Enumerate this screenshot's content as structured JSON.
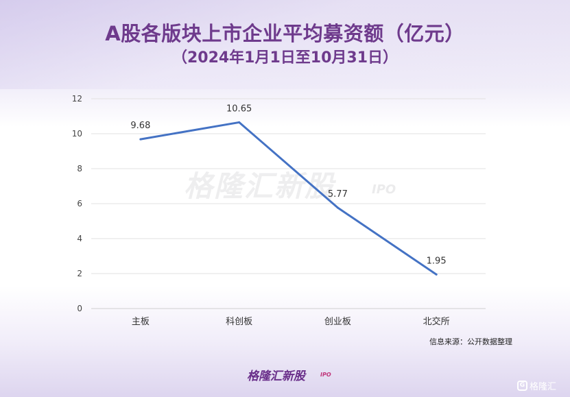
{
  "header": {
    "title": "A股各版块上市企业平均募资额（亿元）",
    "subtitle": "（2024年1月1日至10月31日）"
  },
  "watermark": {
    "text": "格隆汇新股",
    "sub": "IPO"
  },
  "source": "信息来源：公开数据整理",
  "logo": {
    "text": "格隆汇新股",
    "sub": "IPO"
  },
  "badge": {
    "icon": "G",
    "text": "格隆汇"
  },
  "chart_data": {
    "type": "line",
    "title": "A股各版块上市企业平均募资额（亿元）",
    "subtitle": "（2024年1月1日至10月31日）",
    "categories": [
      "主板",
      "科创板",
      "创业板",
      "北交所"
    ],
    "series": [
      {
        "values": [
          9.68,
          10.65,
          5.77,
          1.95
        ],
        "labels": [
          "9.68",
          "10.65",
          "5.77",
          "1.95"
        ],
        "color": "#4472c4"
      }
    ],
    "ylim": [
      0,
      12
    ],
    "yticks": [
      "0",
      "2",
      "4",
      "6",
      "8",
      "10",
      "12"
    ],
    "grid": true,
    "legend": "none"
  }
}
